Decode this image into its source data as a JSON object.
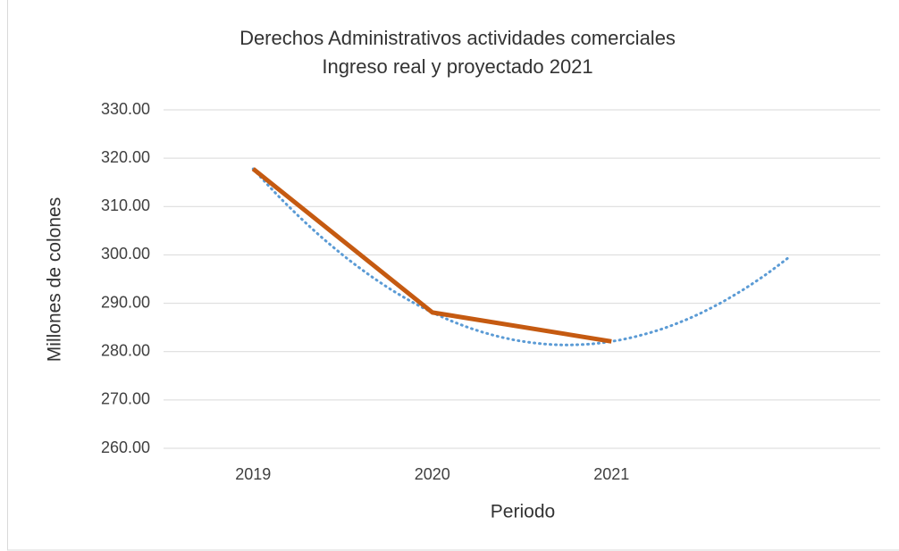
{
  "chart_data": {
    "type": "line",
    "title": "Derechos Administrativos actividades comerciales",
    "subtitle": "Ingreso real y proyectado 2021",
    "x_label": "Periodo",
    "y_label": "Millones de colones",
    "categories": [
      "2019",
      "2020",
      "2021",
      null
    ],
    "series": [
      {
        "color": "#c55a11",
        "values": [
          317.8,
          288.1,
          282.1,
          null
        ]
      }
    ],
    "trendline": {
      "type": "polynomial",
      "order": 2,
      "color": "#5b9bd5"
    },
    "ylim": [
      260,
      330
    ],
    "yticks": [
      {
        "value": 260,
        "label": "260.00"
      },
      {
        "value": 270,
        "label": "270.00"
      },
      {
        "value": 280,
        "label": "280.00"
      },
      {
        "value": 290,
        "label": "290.00"
      },
      {
        "value": 300,
        "label": "300.00"
      },
      {
        "value": 310,
        "label": "310.00"
      },
      {
        "value": 320,
        "label": "320.00"
      },
      {
        "value": 330,
        "label": "330.00"
      }
    ],
    "grid": true
  }
}
